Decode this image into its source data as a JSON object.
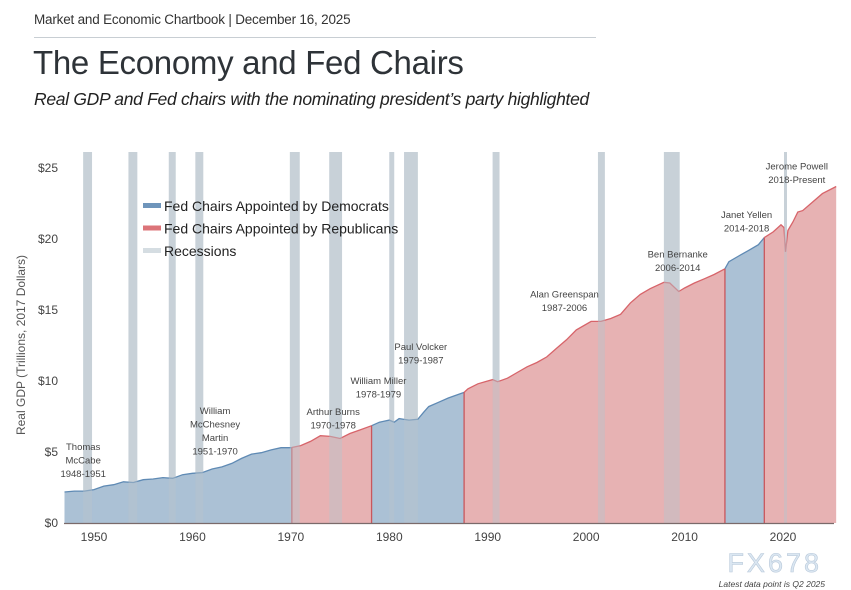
{
  "header": {
    "kicker": "Market and Economic Chartbook | December 16, 2025",
    "title": "The Economy and Fed Chairs",
    "subtitle": "Real GDP and Fed chairs with the nominating president’s party highlighted"
  },
  "watermark": "FX678",
  "footnote": "Latest data point is Q2 2025",
  "chart_data": {
    "type": "area",
    "ylabel": "Real GDP (Trillions, 2017 Dollars)",
    "xlabel": "",
    "xlim": [
      1947,
      2025.5
    ],
    "ylim": [
      0,
      25
    ],
    "x_ticks": [
      1950,
      1960,
      1970,
      1980,
      1990,
      2000,
      2010,
      2020
    ],
    "y_ticks": [
      0,
      5,
      10,
      15,
      20,
      25
    ],
    "y_tick_labels": [
      "$0",
      "$5",
      "$10",
      "$15",
      "$20",
      "$25"
    ],
    "grid": false,
    "legend_position": "top-left",
    "legend": [
      {
        "label": "Fed Chairs Appointed by Democrats",
        "color": "#6f95bb"
      },
      {
        "label": "Fed Chairs Appointed by Republicans",
        "color": "#dc7479"
      },
      {
        "label": "Recessions",
        "color": "#d5dde2"
      }
    ],
    "colors": {
      "democrat_fill": "#abc1d5",
      "democrat_line": "#5f8ab4",
      "republican_fill": "#e7b2b3",
      "republican_line": "#d7646a",
      "recession": "#d5dde2"
    },
    "gdp": [
      [
        1947,
        2.18
      ],
      [
        1948,
        2.25
      ],
      [
        1949,
        2.25
      ],
      [
        1950,
        2.35
      ],
      [
        1951,
        2.6
      ],
      [
        1952,
        2.7
      ],
      [
        1953,
        2.9
      ],
      [
        1954,
        2.85
      ],
      [
        1955,
        3.05
      ],
      [
        1956,
        3.1
      ],
      [
        1957,
        3.2
      ],
      [
        1958,
        3.15
      ],
      [
        1959,
        3.4
      ],
      [
        1960,
        3.5
      ],
      [
        1961,
        3.55
      ],
      [
        1962,
        3.8
      ],
      [
        1963,
        3.95
      ],
      [
        1964,
        4.2
      ],
      [
        1965,
        4.55
      ],
      [
        1966,
        4.85
      ],
      [
        1967,
        4.95
      ],
      [
        1968,
        5.15
      ],
      [
        1969,
        5.3
      ],
      [
        1970,
        5.3
      ],
      [
        1971,
        5.45
      ],
      [
        1972,
        5.75
      ],
      [
        1973,
        6.15
      ],
      [
        1974,
        6.1
      ],
      [
        1975,
        5.95
      ],
      [
        1976,
        6.3
      ],
      [
        1977,
        6.55
      ],
      [
        1978.2,
        6.85
      ],
      [
        1979,
        7.1
      ],
      [
        1980,
        7.25
      ],
      [
        1980.5,
        7.1
      ],
      [
        1981,
        7.35
      ],
      [
        1982,
        7.25
      ],
      [
        1982.9,
        7.3
      ],
      [
        1983.5,
        7.8
      ],
      [
        1984,
        8.2
      ],
      [
        1985,
        8.5
      ],
      [
        1986,
        8.8
      ],
      [
        1987.6,
        9.2
      ],
      [
        1988,
        9.45
      ],
      [
        1989,
        9.8
      ],
      [
        1990.5,
        10.1
      ],
      [
        1991,
        9.95
      ],
      [
        1992,
        10.2
      ],
      [
        1993,
        10.6
      ],
      [
        1994,
        11.0
      ],
      [
        1995,
        11.3
      ],
      [
        1996,
        11.7
      ],
      [
        1997,
        12.3
      ],
      [
        1998,
        12.9
      ],
      [
        1999,
        13.6
      ],
      [
        2000.5,
        14.2
      ],
      [
        2001.5,
        14.2
      ],
      [
        2002.5,
        14.4
      ],
      [
        2003.5,
        14.7
      ],
      [
        2004.5,
        15.5
      ],
      [
        2005.5,
        16.1
      ],
      [
        2006.5,
        16.5
      ],
      [
        2007.9,
        16.95
      ],
      [
        2008.5,
        16.9
      ],
      [
        2009.4,
        16.3
      ],
      [
        2010,
        16.55
      ],
      [
        2011,
        16.9
      ],
      [
        2012,
        17.2
      ],
      [
        2013,
        17.5
      ],
      [
        2014.1,
        17.9
      ],
      [
        2014.5,
        18.4
      ],
      [
        2015.5,
        18.8
      ],
      [
        2016.5,
        19.2
      ],
      [
        2017.5,
        19.6
      ],
      [
        2018.1,
        20.1
      ],
      [
        2019,
        20.5
      ],
      [
        2019.8,
        21.0
      ],
      [
        2020.1,
        20.8
      ],
      [
        2020.25,
        19.1
      ],
      [
        2020.5,
        20.6
      ],
      [
        2021,
        21.2
      ],
      [
        2021.5,
        21.9
      ],
      [
        2022,
        22.0
      ],
      [
        2023,
        22.6
      ],
      [
        2024,
        23.2
      ],
      [
        2025.4,
        23.7
      ]
    ],
    "chairs": [
      {
        "party": "Democrat",
        "start": 1947,
        "end": 1970.1
      },
      {
        "party": "Republican",
        "start": 1970.1,
        "end": 1978.2
      },
      {
        "party": "Democrat",
        "start": 1978.2,
        "end": 1987.6
      },
      {
        "party": "Republican",
        "start": 1987.6,
        "end": 2014.1
      },
      {
        "party": "Democrat",
        "start": 2014.1,
        "end": 2018.1
      },
      {
        "party": "Republican",
        "start": 2018.1,
        "end": 2025.4
      }
    ],
    "recessions": [
      [
        1948.9,
        1949.8
      ],
      [
        1953.5,
        1954.4
      ],
      [
        1957.6,
        1958.3
      ],
      [
        1960.3,
        1961.1
      ],
      [
        1969.9,
        1970.9
      ],
      [
        1973.9,
        1975.2
      ],
      [
        1980.0,
        1980.5
      ],
      [
        1981.5,
        1982.9
      ],
      [
        1990.5,
        1991.2
      ],
      [
        2001.2,
        2001.9
      ],
      [
        2007.9,
        2009.5
      ],
      [
        2020.1,
        2020.3
      ]
    ],
    "annotations": [
      {
        "lines": [
          "Thomas",
          "McCabe",
          "1948-1951"
        ],
        "x": 1948.9,
        "y": 5.35
      },
      {
        "lines": [
          "William",
          "McChesney",
          "Martin",
          "1951-1970"
        ],
        "x": 1962.3,
        "y": 7.9
      },
      {
        "lines": [
          "Arthur Burns",
          "1970-1978"
        ],
        "x": 1974.3,
        "y": 8.25
      },
      {
        "lines": [
          "William Miller",
          "1978-1979"
        ],
        "x": 1978.9,
        "y": 10.0
      },
      {
        "lines": [
          "Paul Volcker",
          "1979-1987"
        ],
        "x": 1983.2,
        "y": 12.4
      },
      {
        "lines": [
          "Alan Greenspan",
          "1987-2006"
        ],
        "x": 1997.8,
        "y": 16.1
      },
      {
        "lines": [
          "Ben Bernanke",
          "2006-2014"
        ],
        "x": 2009.3,
        "y": 18.9
      },
      {
        "lines": [
          "Janet Yellen",
          "2014-2018"
        ],
        "x": 2016.3,
        "y": 21.7
      },
      {
        "lines": [
          "Jerome Powell",
          "2018-Present"
        ],
        "x": 2021.4,
        "y": 25.1
      }
    ]
  }
}
